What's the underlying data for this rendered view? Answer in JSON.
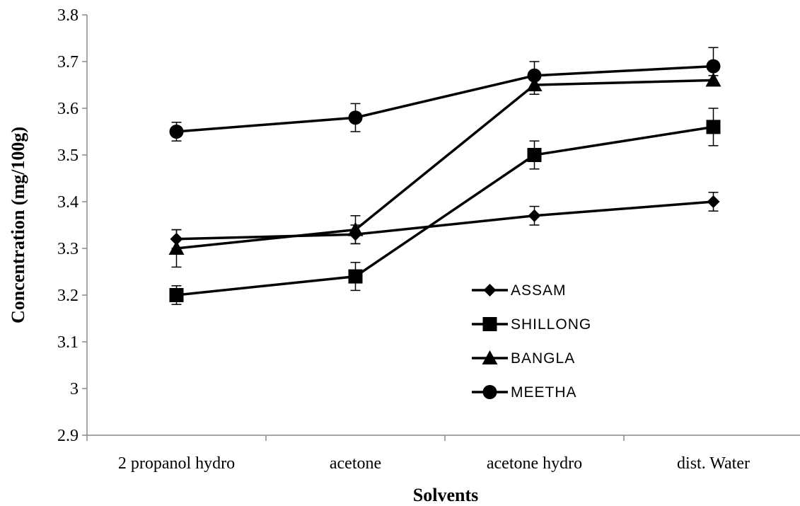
{
  "chart_data": {
    "type": "line",
    "title": "",
    "xlabel": "Solvents",
    "ylabel": "Concentration (mg/100g)",
    "categories": [
      "2 propanol hydro",
      "acetone",
      "acetone hydro",
      "dist. Water"
    ],
    "ylim": [
      2.9,
      3.8
    ],
    "yticks": [
      "2.9",
      "3",
      "3.1",
      "3.2",
      "3.3",
      "3.4",
      "3.5",
      "3.6",
      "3.7",
      "3.8"
    ],
    "grid": false,
    "legend_position": "center-right",
    "series": [
      {
        "name": "ASSAM",
        "marker": "diamond",
        "values": [
          3.32,
          3.33,
          3.37,
          3.4
        ],
        "errors": [
          0.02,
          0.02,
          0.02,
          0.02
        ]
      },
      {
        "name": "SHILLONG",
        "marker": "square",
        "values": [
          3.2,
          3.24,
          3.5,
          3.56
        ],
        "errors": [
          0.02,
          0.03,
          0.03,
          0.04
        ]
      },
      {
        "name": "BANGLA",
        "marker": "triangle",
        "values": [
          3.3,
          3.34,
          3.65,
          3.66
        ],
        "errors": [
          0.04,
          0.03,
          0.02,
          0.01
        ]
      },
      {
        "name": "MEETHA",
        "marker": "circle",
        "values": [
          3.55,
          3.58,
          3.67,
          3.69
        ],
        "errors": [
          0.02,
          0.03,
          0.03,
          0.04
        ]
      }
    ],
    "color": "#000000"
  }
}
